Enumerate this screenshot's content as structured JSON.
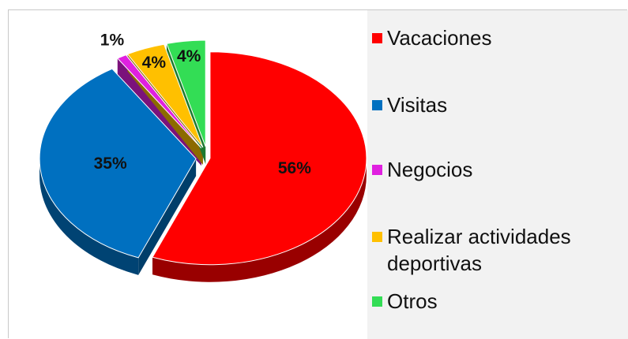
{
  "chart_data": {
    "type": "pie",
    "categories": [
      "Vacaciones",
      "Visitas",
      "Negocios",
      "Realizar actividades deportivas",
      "Otros"
    ],
    "values": [
      56,
      35,
      1,
      4,
      4
    ],
    "value_labels": [
      "56%",
      "35%",
      "1%",
      "4%",
      "4%"
    ],
    "colors": [
      "#ff0000",
      "#0070c0",
      "#e020e0",
      "#ffc000",
      "#33dd55"
    ],
    "legend": "right"
  }
}
